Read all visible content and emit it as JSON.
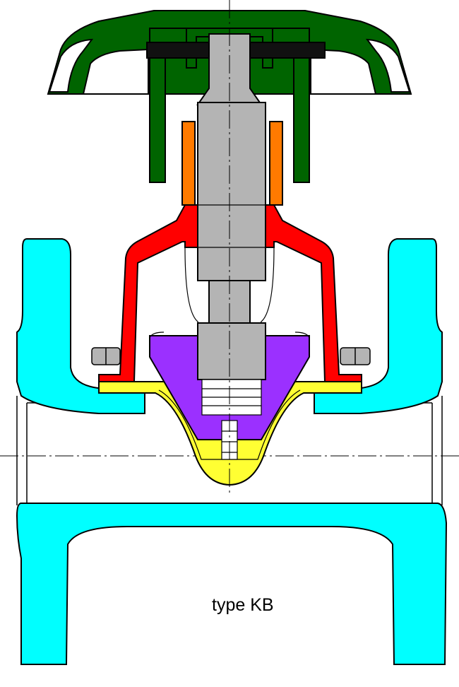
{
  "label": "type KB",
  "colors": {
    "body": "#00ffff",
    "bonnet": "#ff0000",
    "handwheel": "#006400",
    "handwheel_highlight": "#ffffff",
    "spindle": "#b4b4b4",
    "bushing": "#ff7a00",
    "compressor": "#9b30ff",
    "diaphragm": "#ffff33",
    "nut": "#b4b4b4",
    "crossbar": "#111111",
    "outline": "#000000",
    "centerline": "#000000"
  },
  "parts": [
    "valve-body",
    "bonnet",
    "handwheel",
    "spindle",
    "spindle-bushing",
    "compressor",
    "diaphragm",
    "bolts-nuts"
  ]
}
